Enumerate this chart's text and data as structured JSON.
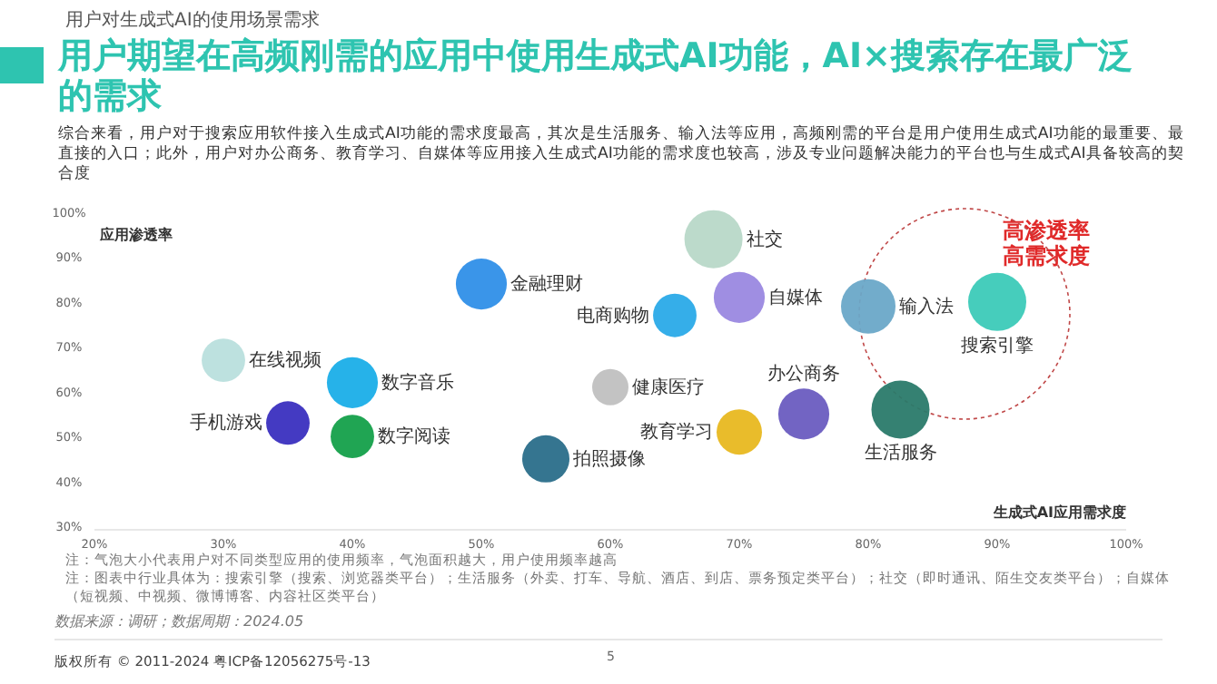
{
  "chart_data": {
    "type": "bubble",
    "title": "用户期望在高频刚需的应用中使用生成式AI功能，AI×搜索存在最广泛的需求",
    "subtitle": "综合来看，用户对于搜索应用软件接入生成式AI功能的需求度最高，其次是生活服务、输入法等应用，高频刚需的平台是用户使用生成式AI功能的最重要、最直接的入口；此外，用户对办公商务、教育学习、自媒体等应用接入生成式AI功能的需求度也较高，涉及专业问题解决能力的平台也与生成式AI具备较高的契合度",
    "xlabel": "生成式AI应用需求度",
    "ylabel": "应用渗透率",
    "annotations": [
      "用户对生成式AI的使用场景需求",
      "高渗透率",
      "高需求度",
      "注：气泡大小代表用户对不同类型应用的使用频率，气泡面积越大，用户使用频率越高",
      "注：图表中行业具体为：搜索引擎（搜索、浏览器类平台）；生活服务（外卖、打车、导航、酒店、到店、票务预定类平台）；社交（即时通讯、陌生交友类平台）；自媒体（短视频、中视频、微博博客、内容社区类平台）",
      "数据来源：调研；数据周期：2024.05",
      "版权所有 © 2011-2024 粤ICP备12056275号-13",
      "5"
    ],
    "xlim": [
      20,
      100
    ],
    "ylim": [
      30,
      100
    ],
    "xticks": [
      {
        "value": 20,
        "label": "20%"
      },
      {
        "value": 30,
        "label": "30%"
      },
      {
        "value": 40,
        "label": "40%"
      },
      {
        "value": 50,
        "label": "50%"
      },
      {
        "value": 60,
        "label": "60%"
      },
      {
        "value": 70,
        "label": "70%"
      },
      {
        "value": 80,
        "label": "80%"
      },
      {
        "value": 90,
        "label": "90%"
      },
      {
        "value": 100,
        "label": "100%"
      }
    ],
    "yticks": [
      {
        "value": 30,
        "label": "30%"
      },
      {
        "value": 40,
        "label": "40%"
      },
      {
        "value": 50,
        "label": "50%"
      },
      {
        "value": 60,
        "label": "60%"
      },
      {
        "value": 70,
        "label": "70%"
      },
      {
        "value": 80,
        "label": "80%"
      },
      {
        "value": 90,
        "label": "90%"
      },
      {
        "value": 100,
        "label": "100%"
      }
    ],
    "series": [
      {
        "name": "在线视频",
        "color": "#b9dfdd",
        "x": [
          30
        ],
        "values": [
          67
        ],
        "sizes": [
          0.56
        ]
      },
      {
        "name": "金融理财",
        "color": "#2f8fe8",
        "x": [
          50
        ],
        "values": [
          84
        ],
        "sizes": [
          0.77
        ]
      },
      {
        "name": "数字音乐",
        "color": "#1aaee8",
        "x": [
          40
        ],
        "values": [
          62
        ],
        "sizes": [
          0.77
        ]
      },
      {
        "name": "手机游戏",
        "color": "#3a2fbf",
        "x": [
          35
        ],
        "values": [
          53
        ],
        "sizes": [
          0.56
        ]
      },
      {
        "name": "数字阅读",
        "color": "#14a04a",
        "x": [
          40
        ],
        "values": [
          50
        ],
        "sizes": [
          0.56
        ]
      },
      {
        "name": "拍照摄像",
        "color": "#2a6e8a",
        "x": [
          55
        ],
        "values": [
          45
        ],
        "sizes": [
          0.66
        ]
      },
      {
        "name": "健康医疗",
        "color": "#c0c0c0",
        "x": [
          60
        ],
        "values": [
          61
        ],
        "sizes": [
          0.39
        ]
      },
      {
        "name": "社交",
        "color": "#b8d8c8",
        "x": [
          68
        ],
        "values": [
          94
        ],
        "sizes": [
          1
        ]
      },
      {
        "name": "自媒体",
        "color": "#9a88e0",
        "x": [
          70
        ],
        "values": [
          81
        ],
        "sizes": [
          0.77
        ]
      },
      {
        "name": "电商购物",
        "color": "#2aaae8",
        "x": [
          65
        ],
        "values": [
          77
        ],
        "sizes": [
          0.56
        ]
      },
      {
        "name": "办公商务",
        "color": "#6a5cc0",
        "x": [
          75
        ],
        "values": [
          55
        ],
        "sizes": [
          0.77
        ]
      },
      {
        "name": "教育学习",
        "color": "#e8b820",
        "x": [
          70
        ],
        "values": [
          51
        ],
        "sizes": [
          0.61
        ]
      },
      {
        "name": "输入法",
        "color": "#6aa8c8",
        "x": [
          80
        ],
        "values": [
          79
        ],
        "sizes": [
          0.88
        ]
      },
      {
        "name": "生活服务",
        "color": "#2a7a6a",
        "x": [
          82.5
        ],
        "values": [
          56
        ],
        "sizes": [
          1
        ]
      },
      {
        "name": "搜索引擎",
        "color": "#3ccab8",
        "x": [
          90
        ],
        "values": [
          80
        ],
        "sizes": [
          1
        ]
      }
    ]
  }
}
